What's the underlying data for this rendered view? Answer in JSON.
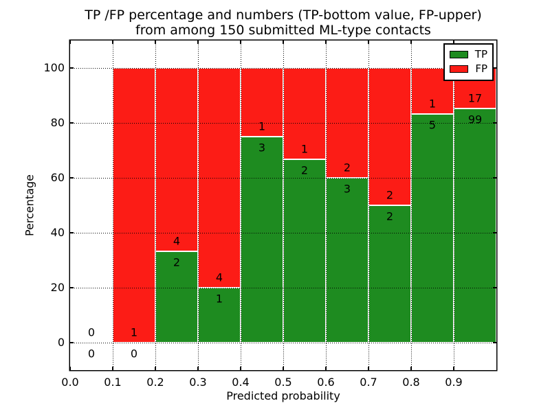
{
  "chart_data": {
    "type": "bar",
    "stacked": true,
    "normalized_to_percent": true,
    "title": "TP /FP percentage and numbers (TP-bottom value, FP-upper) from among 150 submitted ML-type contacts",
    "title_line1": "TP /FP percentage and numbers (TP-bottom value, FP-upper)",
    "title_line2": "from among 150 submitted ML-type contacts",
    "xlabel": "Predicted probability",
    "ylabel": "Percentage",
    "xlim": [
      0.0,
      1.0
    ],
    "ylim": [
      -10,
      110
    ],
    "x_tick_labels": [
      "0.0",
      "0.1",
      "0.2",
      "0.3",
      "0.4",
      "0.5",
      "0.6",
      "0.7",
      "0.8",
      "0.9"
    ],
    "y_tick_values": [
      0,
      20,
      40,
      60,
      80,
      100
    ],
    "grid": true,
    "grid_style": "dotted",
    "legend_position": "upper right",
    "total_contacts": 150,
    "colors": {
      "tp": "#1e8b20",
      "fp": "#fc1c16",
      "bar_edge": "#ffffff",
      "text": "#000000"
    },
    "legend": [
      {
        "label": "TP",
        "key": "tp"
      },
      {
        "label": "FP",
        "key": "fp"
      }
    ],
    "bins": [
      {
        "x_start": 0.0,
        "x_end": 0.1,
        "tp_count": 0,
        "fp_count": 0,
        "tp_pct": null,
        "fp_pct": null
      },
      {
        "x_start": 0.1,
        "x_end": 0.2,
        "tp_count": 0,
        "fp_count": 1,
        "tp_pct": 0,
        "fp_pct": 100
      },
      {
        "x_start": 0.2,
        "x_end": 0.3,
        "tp_count": 2,
        "fp_count": 4,
        "tp_pct": 33.33,
        "fp_pct": 66.67
      },
      {
        "x_start": 0.3,
        "x_end": 0.4,
        "tp_count": 1,
        "fp_count": 4,
        "tp_pct": 20,
        "fp_pct": 80
      },
      {
        "x_start": 0.4,
        "x_end": 0.5,
        "tp_count": 3,
        "fp_count": 1,
        "tp_pct": 75,
        "fp_pct": 25
      },
      {
        "x_start": 0.5,
        "x_end": 0.6,
        "tp_count": 2,
        "fp_count": 1,
        "tp_pct": 66.67,
        "fp_pct": 33.33
      },
      {
        "x_start": 0.6,
        "x_end": 0.7,
        "tp_count": 3,
        "fp_count": 2,
        "tp_pct": 60,
        "fp_pct": 40
      },
      {
        "x_start": 0.7,
        "x_end": 0.8,
        "tp_count": 2,
        "fp_count": 2,
        "tp_pct": 50,
        "fp_pct": 50
      },
      {
        "x_start": 0.8,
        "x_end": 0.9,
        "tp_count": 5,
        "fp_count": 1,
        "tp_pct": 83.33,
        "fp_pct": 16.67
      },
      {
        "x_start": 0.9,
        "x_end": 1.0,
        "tp_count": 99,
        "fp_count": 17,
        "tp_pct": 85.34,
        "fp_pct": 14.66
      }
    ]
  }
}
